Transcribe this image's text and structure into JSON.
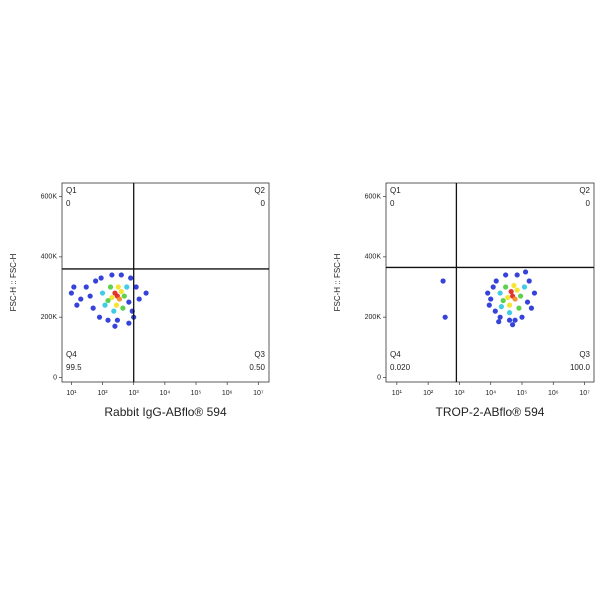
{
  "chart_data": [
    {
      "type": "scatter",
      "x_label": "Rabbit IgG-ABflo® 594",
      "y_label": "FSC-H :: FSC-H",
      "xscale": "log",
      "xlim": [
        5,
        22000000
      ],
      "ylim": [
        -15000,
        645000
      ],
      "xticks": [
        {
          "value": 10,
          "label": "10¹"
        },
        {
          "value": 100,
          "label": "10²"
        },
        {
          "value": 1000,
          "label": "10³"
        },
        {
          "value": 10000,
          "label": "10⁴"
        },
        {
          "value": 100000,
          "label": "10⁵"
        },
        {
          "value": 1000000,
          "label": "10⁶"
        },
        {
          "value": 10000000,
          "label": "10⁷"
        }
      ],
      "yticks": [
        0,
        {
          "value": 200000,
          "label": "200K"
        },
        {
          "value": 400000,
          "label": "400K"
        },
        {
          "value": 600000,
          "label": "600K"
        }
      ],
      "gate": {
        "x": 1000,
        "y": 360000
      },
      "quadrants": {
        "names": [
          "Q1",
          "Q2",
          "Q3",
          "Q4"
        ],
        "values": [
          0,
          0,
          0.5,
          99.5
        ],
        "value_labels": [
          "0",
          "0",
          "0.50",
          "99.5"
        ]
      },
      "x": [
        300,
        250,
        350,
        200,
        400,
        280,
        320,
        150,
        500,
        180,
        450,
        230,
        600,
        100,
        120,
        30,
        20,
        10,
        50,
        60,
        80,
        150,
        300,
        700,
        800,
        900,
        1200,
        400,
        200,
        40,
        15,
        1500,
        2500,
        700,
        12,
        90,
        250,
        1000
      ],
      "values": [
        270000,
        280000,
        260000,
        265000,
        285000,
        240000,
        300000,
        255000,
        270000,
        300000,
        230000,
        220000,
        300000,
        280000,
        240000,
        300000,
        260000,
        280000,
        230000,
        320000,
        200000,
        190000,
        190000,
        250000,
        330000,
        220000,
        300000,
        340000,
        340000,
        270000,
        240000,
        260000,
        280000,
        180000,
        300000,
        330000,
        170000,
        200000
      ],
      "colors": [
        "#e0201b",
        "#e0201b",
        "#f5891c",
        "#f2e21b",
        "#f2e21b",
        "#f2e21b",
        "#f2e21b",
        "#4ccb3a",
        "#4ccb3a",
        "#4ccb3a",
        "#4ccb3a",
        "#2bc7e0",
        "#2bc7e0",
        "#2bc7e0",
        "#2bc7e0",
        "#1f2fd6",
        "#1f2fd6",
        "#1f2fd6",
        "#1f2fd6",
        "#1f2fd6",
        "#1f2fd6",
        "#1f2fd6",
        "#1f2fd6",
        "#1f2fd6",
        "#1f2fd6",
        "#1f2fd6",
        "#1f2fd6",
        "#1f2fd6",
        "#1f2fd6",
        "#1f2fd6",
        "#1f2fd6",
        "#1f2fd6",
        "#1f2fd6",
        "#1f2fd6",
        "#1f2fd6",
        "#1f2fd6",
        "#1f2fd6",
        "#1f2fd6"
      ]
    },
    {
      "type": "scatter",
      "x_label": "TROP-2-ABflo® 594",
      "y_label": "FSC-H :: FSC-H",
      "xscale": "log",
      "xlim": [
        4.5,
        20000000
      ],
      "ylim": [
        -15000,
        645000
      ],
      "xticks": [
        {
          "value": 10,
          "label": "10¹"
        },
        {
          "value": 100,
          "label": "10²"
        },
        {
          "value": 1000,
          "label": "10³"
        },
        {
          "value": 10000,
          "label": "10⁴"
        },
        {
          "value": 100000,
          "label": "10⁵"
        },
        {
          "value": 1000000,
          "label": "10⁶"
        },
        {
          "value": 10000000,
          "label": "10⁷"
        }
      ],
      "yticks": [
        0,
        {
          "value": 200000,
          "label": "200K"
        },
        {
          "value": 400000,
          "label": "400K"
        },
        {
          "value": 600000,
          "label": "600K"
        }
      ],
      "gate": {
        "x": 800,
        "y": 365000
      },
      "quadrants": {
        "names": [
          "Q1",
          "Q2",
          "Q3",
          "Q4"
        ],
        "values": [
          0,
          0,
          100,
          0.02
        ],
        "value_labels": [
          "0",
          "0",
          "100.0",
          "0.020"
        ]
      },
      "x": [
        50000,
        45000,
        60000,
        35000,
        70000,
        40000,
        55000,
        25000,
        90000,
        30000,
        80000,
        40000,
        120000,
        20000,
        22000,
        12000,
        10000,
        8000,
        14000,
        15000,
        20000,
        40000,
        60000,
        150000,
        170000,
        200000,
        250000,
        70000,
        30000,
        9000,
        100000,
        130000,
        50000,
        18000,
        300,
        350
      ],
      "values": [
        270000,
        285000,
        260000,
        265000,
        290000,
        240000,
        305000,
        255000,
        270000,
        300000,
        230000,
        215000,
        300000,
        280000,
        235000,
        300000,
        260000,
        280000,
        220000,
        320000,
        200000,
        190000,
        190000,
        250000,
        320000,
        230000,
        280000,
        340000,
        340000,
        240000,
        200000,
        350000,
        175000,
        185000,
        320000,
        200000
      ],
      "colors": [
        "#e0201b",
        "#e0201b",
        "#f5891c",
        "#f2e21b",
        "#f2e21b",
        "#f2e21b",
        "#f2e21b",
        "#4ccb3a",
        "#4ccb3a",
        "#4ccb3a",
        "#4ccb3a",
        "#2bc7e0",
        "#2bc7e0",
        "#2bc7e0",
        "#2bc7e0",
        "#1f2fd6",
        "#1f2fd6",
        "#1f2fd6",
        "#1f2fd6",
        "#1f2fd6",
        "#1f2fd6",
        "#1f2fd6",
        "#1f2fd6",
        "#1f2fd6",
        "#1f2fd6",
        "#1f2fd6",
        "#1f2fd6",
        "#1f2fd6",
        "#1f2fd6",
        "#1f2fd6",
        "#1f2fd6",
        "#1f2fd6",
        "#1f2fd6",
        "#1f2fd6",
        "#1f2fd6",
        "#1f2fd6"
      ]
    }
  ]
}
